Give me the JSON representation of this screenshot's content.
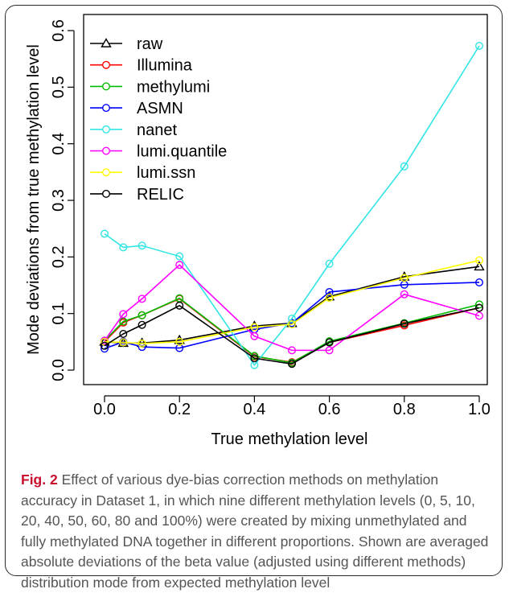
{
  "chart_data": {
    "type": "line",
    "xlabel": "True methylation level",
    "ylabel": "Mode deviations from true methylation level",
    "xlim": [
      0.0,
      1.0
    ],
    "ylim": [
      0.0,
      0.6
    ],
    "xticks": [
      "0.0",
      "0.2",
      "0.4",
      "0.6",
      "0.8",
      "1.0"
    ],
    "yticks": [
      "0.0",
      "0.1",
      "0.2",
      "0.3",
      "0.4",
      "0.5",
      "0.6"
    ],
    "x": [
      0.0,
      0.05,
      0.1,
      0.2,
      0.4,
      0.5,
      0.6,
      0.8,
      1.0
    ],
    "legend_position": "top-left",
    "grid": false,
    "series": [
      {
        "name": "raw",
        "color": "#000000",
        "marker": "triangle",
        "values": [
          0.05,
          0.048,
          0.048,
          0.053,
          0.078,
          0.083,
          0.13,
          0.165,
          0.183
        ]
      },
      {
        "name": "Illumina",
        "color": "#ff0000",
        "marker": "circle",
        "values": [
          0.05,
          0.084,
          0.097,
          0.126,
          0.024,
          0.014,
          0.049,
          0.079,
          0.11
        ]
      },
      {
        "name": "methylumi",
        "color": "#00bb00",
        "marker": "circle",
        "values": [
          0.052,
          0.086,
          0.097,
          0.127,
          0.025,
          0.013,
          0.051,
          0.083,
          0.116
        ]
      },
      {
        "name": "ASMN",
        "color": "#0000ff",
        "marker": "circle",
        "values": [
          0.038,
          0.05,
          0.041,
          0.039,
          0.072,
          0.083,
          0.138,
          0.151,
          0.155
        ]
      },
      {
        "name": "nanet",
        "color": "#33e5e5",
        "marker": "circle",
        "values": [
          0.241,
          0.217,
          0.22,
          0.201,
          0.009,
          0.091,
          0.188,
          0.36,
          0.573
        ]
      },
      {
        "name": "lumi.quantile",
        "color": "#ff00ff",
        "marker": "circle",
        "values": [
          0.052,
          0.099,
          0.126,
          0.186,
          0.06,
          0.035,
          0.035,
          0.134,
          0.096
        ]
      },
      {
        "name": "lumi.ssn",
        "color": "#ffff00",
        "marker": "circle",
        "values": [
          0.05,
          0.049,
          0.047,
          0.05,
          0.076,
          0.081,
          0.128,
          0.163,
          0.194
        ]
      },
      {
        "name": "RELIC",
        "color": "#000000",
        "marker": "circle",
        "values": [
          0.043,
          0.064,
          0.08,
          0.114,
          0.021,
          0.011,
          0.049,
          0.082,
          0.11
        ]
      }
    ]
  },
  "caption": {
    "label": "Fig. 2",
    "text": " Effect of various dye-bias correction methods on methylation accuracy in Dataset 1, in which nine different methylation levels (0, 5, 10, 20, 40, 50, 60, 80 and 100%) were created by mixing unmethylated and fully methylated DNA together in different proportions. Shown are averaged absolute deviations of the beta value (adjusted using different methods) distribution mode from expected methylation level"
  }
}
